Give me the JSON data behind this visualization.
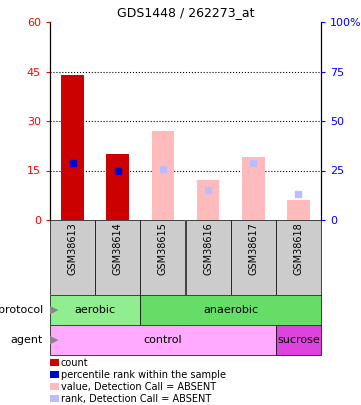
{
  "title": "GDS1448 / 262273_at",
  "samples": [
    "GSM38613",
    "GSM38614",
    "GSM38615",
    "GSM38616",
    "GSM38617",
    "GSM38618"
  ],
  "count_values": [
    44,
    20,
    null,
    null,
    null,
    null
  ],
  "rank_values": [
    29,
    25,
    null,
    null,
    null,
    null
  ],
  "absent_value_values": [
    null,
    null,
    27,
    12,
    19,
    6
  ],
  "absent_rank_values": [
    null,
    null,
    26,
    15,
    29,
    13
  ],
  "left_ylim": [
    0,
    60
  ],
  "right_ylim": [
    0,
    100
  ],
  "left_yticks": [
    0,
    15,
    30,
    45,
    60
  ],
  "right_yticks": [
    0,
    25,
    50,
    75,
    100
  ],
  "left_yticklabels": [
    "0",
    "15",
    "30",
    "45",
    "60"
  ],
  "right_yticklabels": [
    "0",
    "25",
    "50",
    "75",
    "100%"
  ],
  "protocol_labels": [
    [
      "aerobic",
      0,
      2
    ],
    [
      "anaerobic",
      2,
      6
    ]
  ],
  "agent_labels": [
    [
      "control",
      0,
      5
    ],
    [
      "sucrose",
      5,
      6
    ]
  ],
  "protocol_colors": [
    "#90ee90",
    "#66dd66"
  ],
  "agent_colors": [
    "#ffaaff",
    "#dd44dd"
  ],
  "color_count": "#cc0000",
  "color_rank": "#0000cc",
  "color_absent_value": "#ffbbbb",
  "color_absent_rank": "#bbbbff",
  "legend_items": [
    [
      "count",
      "#cc0000"
    ],
    [
      "percentile rank within the sample",
      "#0000cc"
    ],
    [
      "value, Detection Call = ABSENT",
      "#ffbbbb"
    ],
    [
      "rank, Detection Call = ABSENT",
      "#bbbbff"
    ]
  ],
  "dotted_grid": [
    15,
    30,
    45
  ],
  "sample_box_color": "#cccccc",
  "sample_box_edge": "#000000"
}
